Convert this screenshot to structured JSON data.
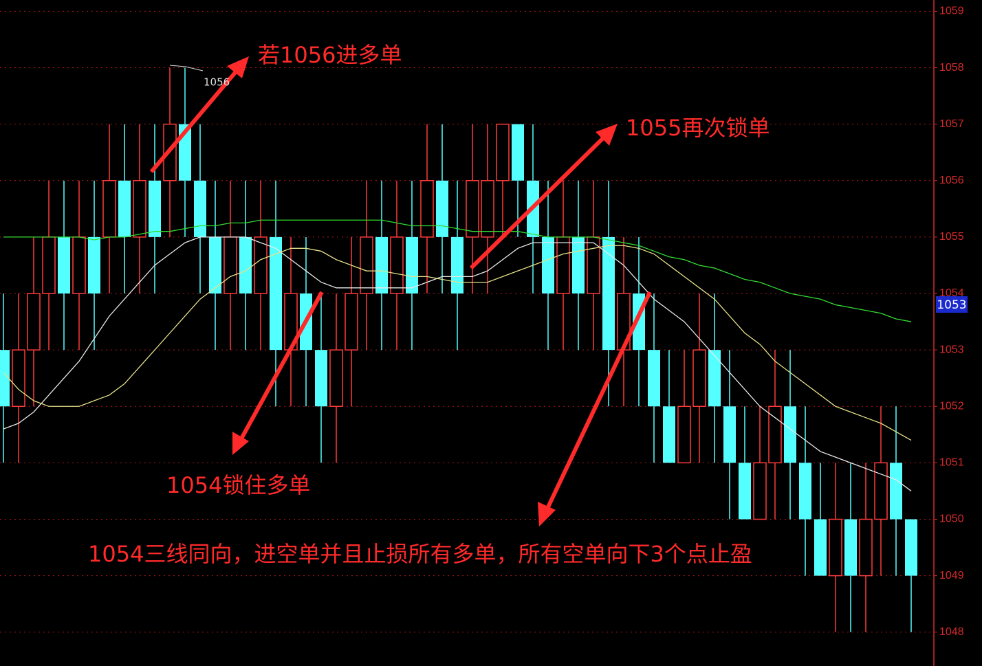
{
  "chart_data": {
    "type": "candlestick",
    "ylim": [
      1047.4,
      1059.2
    ],
    "yticks": [
      1048,
      1049,
      1050,
      1051,
      1052,
      1053,
      1054,
      1055,
      1056,
      1057,
      1058,
      1059
    ],
    "grid": true,
    "up_color": "#ff3b3b",
    "down_color": "#54ffff",
    "open": [
      1053,
      1052,
      1053,
      1054,
      1055,
      1054,
      1055,
      1055,
      1056,
      1055,
      1056,
      1056,
      1057,
      1056,
      1055,
      1054,
      1055,
      1054,
      1055,
      1053,
      1054,
      1053,
      1052,
      1053,
      1054,
      1055,
      1054,
      1055,
      1055,
      1056,
      1055,
      1055,
      1055,
      1056,
      1057,
      1056,
      1055,
      1054,
      1055,
      1054,
      1055,
      1053,
      1054,
      1053,
      1052,
      1051,
      1052,
      1053,
      1052,
      1051,
      1050,
      1051,
      1052,
      1051,
      1050,
      1049,
      1050,
      1049,
      1050,
      1051,
      1050
    ],
    "high": [
      1054,
      1054,
      1055,
      1056,
      1056,
      1056,
      1056,
      1057,
      1057,
      1057,
      1057,
      1058,
      1058,
      1057,
      1056,
      1056,
      1056,
      1056,
      1056,
      1055,
      1055,
      1054,
      1054,
      1055,
      1056,
      1056,
      1056,
      1056,
      1057,
      1057,
      1056,
      1057,
      1057,
      1057,
      1057,
      1057,
      1056,
      1056,
      1056,
      1056,
      1056,
      1055,
      1055,
      1054,
      1053,
      1053,
      1054,
      1054,
      1053,
      1052,
      1052,
      1053,
      1053,
      1052,
      1051,
      1051,
      1051,
      1051,
      1052,
      1052,
      1050
    ],
    "low": [
      1051,
      1051,
      1052,
      1053,
      1053,
      1053,
      1053,
      1054,
      1054,
      1054,
      1054,
      1055,
      1055,
      1054,
      1053,
      1053,
      1053,
      1053,
      1052,
      1052,
      1052,
      1051,
      1051,
      1052,
      1053,
      1053,
      1053,
      1053,
      1054,
      1054,
      1053,
      1054,
      1054,
      1055,
      1055,
      1054,
      1053,
      1053,
      1053,
      1053,
      1052,
      1052,
      1052,
      1051,
      1051,
      1051,
      1051,
      1051,
      1050,
      1050,
      1050,
      1050,
      1050,
      1049,
      1049,
      1048,
      1048,
      1048,
      1049,
      1049,
      1048
    ],
    "close": [
      1052,
      1053,
      1054,
      1055,
      1054,
      1055,
      1054,
      1056,
      1055,
      1056,
      1055,
      1057,
      1056,
      1055,
      1054,
      1055,
      1054,
      1055,
      1053,
      1054,
      1053,
      1052,
      1053,
      1054,
      1055,
      1054,
      1055,
      1054,
      1056,
      1055,
      1054,
      1056,
      1056,
      1057,
      1056,
      1055,
      1054,
      1055,
      1054,
      1055,
      1053,
      1054,
      1053,
      1052,
      1051,
      1052,
      1053,
      1052,
      1051,
      1050,
      1051,
      1052,
      1051,
      1050,
      1049,
      1050,
      1049,
      1050,
      1051,
      1050,
      1049
    ],
    "series": [
      {
        "color": "#e8e8e8",
        "values": [
          1051.6,
          1051.7,
          1051.9,
          1052.2,
          1052.5,
          1052.8,
          1053.2,
          1053.6,
          1053.9,
          1054.2,
          1054.5,
          1054.7,
          1054.9,
          1055.0,
          1055.0,
          1055.0,
          1055.0,
          1054.9,
          1054.8,
          1054.6,
          1054.4,
          1054.2,
          1054.1,
          1054.1,
          1054.1,
          1054.1,
          1054.1,
          1054.1,
          1054.2,
          1054.3,
          1054.3,
          1054.3,
          1054.4,
          1054.6,
          1054.8,
          1054.9,
          1054.9,
          1054.9,
          1054.9,
          1054.9,
          1054.7,
          1054.5,
          1054.2,
          1053.9,
          1053.7,
          1053.5,
          1053.2,
          1052.9,
          1052.6,
          1052.3,
          1052.0,
          1051.8,
          1051.6,
          1051.4,
          1051.2,
          1051.1,
          1051.0,
          1050.9,
          1050.8,
          1050.7,
          1050.5
        ]
      },
      {
        "color": "#e6e08a",
        "values": [
          1052.6,
          1052.3,
          1052.1,
          1052.0,
          1052.0,
          1052.0,
          1052.1,
          1052.2,
          1052.4,
          1052.7,
          1053.0,
          1053.3,
          1053.6,
          1053.9,
          1054.1,
          1054.3,
          1054.4,
          1054.6,
          1054.7,
          1054.8,
          1054.8,
          1054.75,
          1054.6,
          1054.5,
          1054.4,
          1054.4,
          1054.35,
          1054.3,
          1054.3,
          1054.25,
          1054.2,
          1054.2,
          1054.2,
          1054.3,
          1054.4,
          1054.5,
          1054.6,
          1054.7,
          1054.75,
          1054.8,
          1054.85,
          1054.85,
          1054.8,
          1054.7,
          1054.5,
          1054.3,
          1054.1,
          1053.9,
          1053.6,
          1053.3,
          1053.1,
          1052.8,
          1052.6,
          1052.4,
          1052.2,
          1052.0,
          1051.9,
          1051.8,
          1051.7,
          1051.55,
          1051.4
        ]
      },
      {
        "color": "#33dd33",
        "values": [
          1055.0,
          1055.0,
          1055.0,
          1055.0,
          1055.0,
          1055.0,
          1054.95,
          1055.0,
          1055.0,
          1055.05,
          1055.1,
          1055.1,
          1055.15,
          1055.2,
          1055.2,
          1055.25,
          1055.25,
          1055.3,
          1055.3,
          1055.3,
          1055.3,
          1055.3,
          1055.3,
          1055.3,
          1055.3,
          1055.3,
          1055.25,
          1055.2,
          1055.2,
          1055.2,
          1055.15,
          1055.1,
          1055.1,
          1055.1,
          1055.1,
          1055.05,
          1055.0,
          1055.0,
          1055.0,
          1055.0,
          1054.95,
          1054.9,
          1054.85,
          1054.75,
          1054.65,
          1054.6,
          1054.5,
          1054.45,
          1054.35,
          1054.25,
          1054.2,
          1054.1,
          1054.0,
          1053.95,
          1053.9,
          1053.8,
          1053.75,
          1053.7,
          1053.65,
          1053.55,
          1053.5
        ]
      }
    ],
    "high_label": "1056",
    "price_tag": "1053",
    "annotations": [
      "若1056进多单",
      "1055再次锁单",
      "1054锁住多单",
      "1054三线同向，进空单并且止损所有多单，所有空单向下3个点止盈"
    ]
  }
}
